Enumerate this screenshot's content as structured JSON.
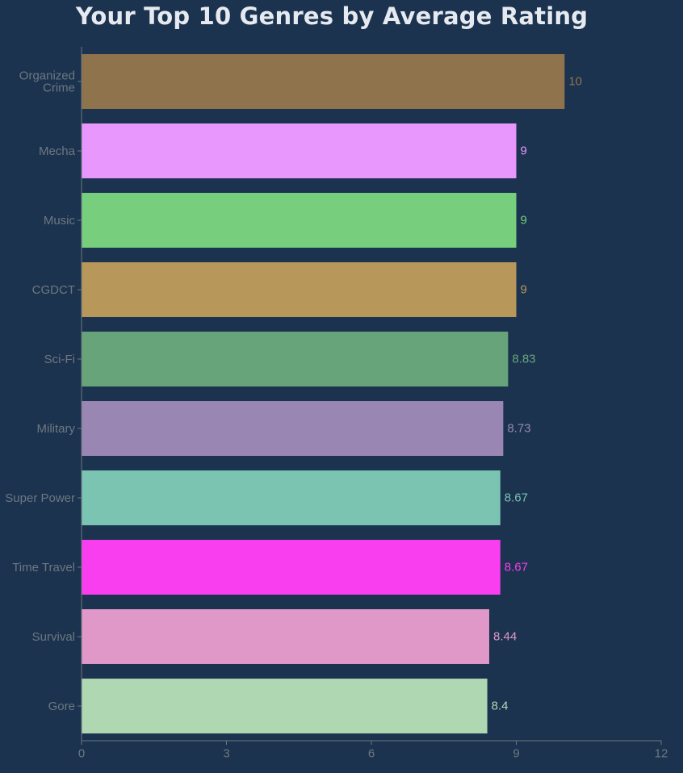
{
  "chart_data": {
    "type": "bar",
    "orientation": "horizontal",
    "title": "Your Top 10 Genres by Average Rating",
    "xlabel": "",
    "ylabel": "",
    "xlim": [
      0,
      12
    ],
    "xticks": [
      0,
      3,
      6,
      9,
      12
    ],
    "grid": false,
    "legend": "none",
    "categories": [
      [
        "Organized",
        "Crime"
      ],
      [
        "Mecha"
      ],
      [
        "Music"
      ],
      [
        "CGDCT"
      ],
      [
        "Sci-Fi"
      ],
      [
        "Military"
      ],
      [
        "Super Power"
      ],
      [
        "Time Travel"
      ],
      [
        "Survival"
      ],
      [
        "Gore"
      ]
    ],
    "values": [
      10,
      9,
      9,
      9,
      8.83,
      8.73,
      8.67,
      8.67,
      8.44,
      8.4
    ],
    "value_labels": [
      "10",
      "9",
      "9",
      "9",
      "8.83",
      "8.73",
      "8.67",
      "8.67",
      "8.44",
      "8.4"
    ],
    "colors": [
      "#8f734d",
      "#e897fd",
      "#77cf7e",
      "#b8975a",
      "#67a47a",
      "#9a86b3",
      "#7ac4b1",
      "#f83eef",
      "#df98c7",
      "#afd7b2"
    ],
    "background": "#1b334f",
    "axis_color": "#6d7781"
  }
}
